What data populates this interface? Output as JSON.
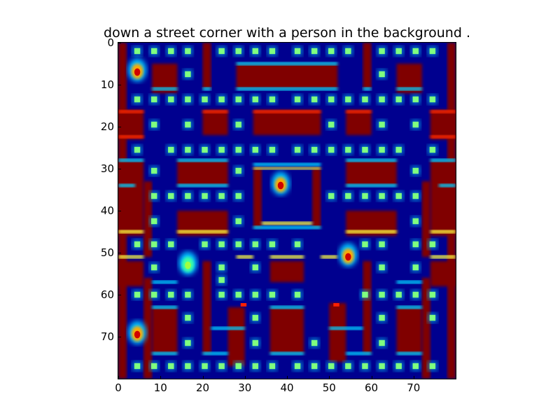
{
  "title": "down a street corner with a person in the background .",
  "axes": {
    "x_ticks": [
      "0",
      "10",
      "20",
      "30",
      "40",
      "50",
      "60",
      "70"
    ],
    "y_ticks": [
      "0",
      "10",
      "20",
      "30",
      "40",
      "50",
      "60",
      "70"
    ],
    "xlim": [
      0,
      80
    ],
    "ylim": [
      80,
      0
    ]
  },
  "colormap": "jet",
  "colors": {
    "background": "#00008f",
    "wall": "#800000",
    "wall_edge": "#ff2a00",
    "pellet": "#7fff7f",
    "glow": "#00d0ff",
    "yellow_bar": "#ffff40"
  },
  "game": {
    "type": "maze (Pac-Man style) rendered as a heatmap",
    "characters": [
      "player",
      "ghost-left",
      "ghost-right",
      "ghost-center"
    ]
  }
}
